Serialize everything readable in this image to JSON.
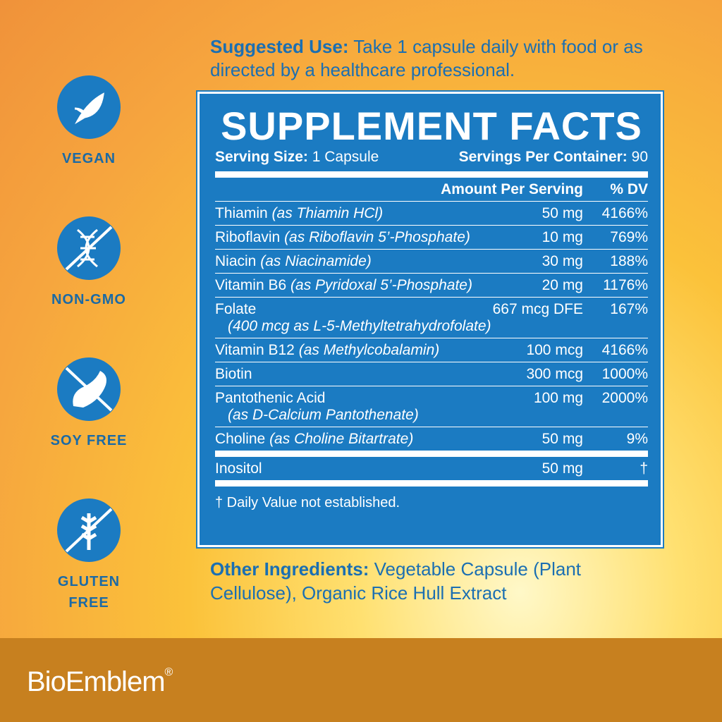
{
  "badges": [
    {
      "label": "VEGAN"
    },
    {
      "label": "NON-GMO"
    },
    {
      "label": "SOY FREE"
    },
    {
      "label": "GLUTEN FREE"
    }
  ],
  "suggested_use": {
    "label": "Suggested Use:",
    "text": "Take 1 capsule daily with food or as directed by a healthcare professional."
  },
  "facts": {
    "title": "SUPPLEMENT FACTS",
    "serving_size_label": "Serving Size:",
    "serving_size": "1 Capsule",
    "servings_label": "Servings Per Container:",
    "servings": "90",
    "header": {
      "amount": "Amount Per Serving",
      "dv": "% DV"
    },
    "rows": [
      {
        "name": "Thiamin",
        "source": "(as Thiamin HCl)",
        "amount": "50 mg",
        "dv": "4166%"
      },
      {
        "name": "Riboflavin",
        "source": "(as Riboflavin 5’-Phosphate)",
        "amount": "10 mg",
        "dv": "769%"
      },
      {
        "name": "Niacin",
        "source": "(as Niacinamide)",
        "amount": "30 mg",
        "dv": "188%"
      },
      {
        "name": "Vitamin B6",
        "source": "(as Pyridoxal 5’-Phosphate)",
        "amount": "20 mg",
        "dv": "1176%"
      },
      {
        "name": "Folate",
        "source": "(400 mcg as L-5-Methyltetrahydrofolate)",
        "amount": "667 mcg DFE",
        "dv": "167%"
      },
      {
        "name": "Vitamin B12",
        "source": "(as Methylcobalamin)",
        "amount": "100 mcg",
        "dv": "4166%"
      },
      {
        "name": "Biotin",
        "amount": "300 mcg",
        "dv": "1000%"
      },
      {
        "name": "Pantothenic Acid",
        "source": "(as D-Calcium Pantothenate)",
        "amount": "100 mg",
        "dv": "2000%"
      },
      {
        "name": "Choline",
        "source": "(as Choline Bitartrate)",
        "amount": "50 mg",
        "dv": "9%"
      },
      {
        "name": "Inositol",
        "amount": "50 mg",
        "dv": "†"
      }
    ],
    "footnote": "† Daily Value not established."
  },
  "other_ingredients": {
    "label": "Other Ingredients:",
    "text": "Vegetable Capsule (Plant Cellulose), Organic Rice Hull Extract"
  },
  "brand": {
    "name": "BioEmblem",
    "mark": "®"
  }
}
